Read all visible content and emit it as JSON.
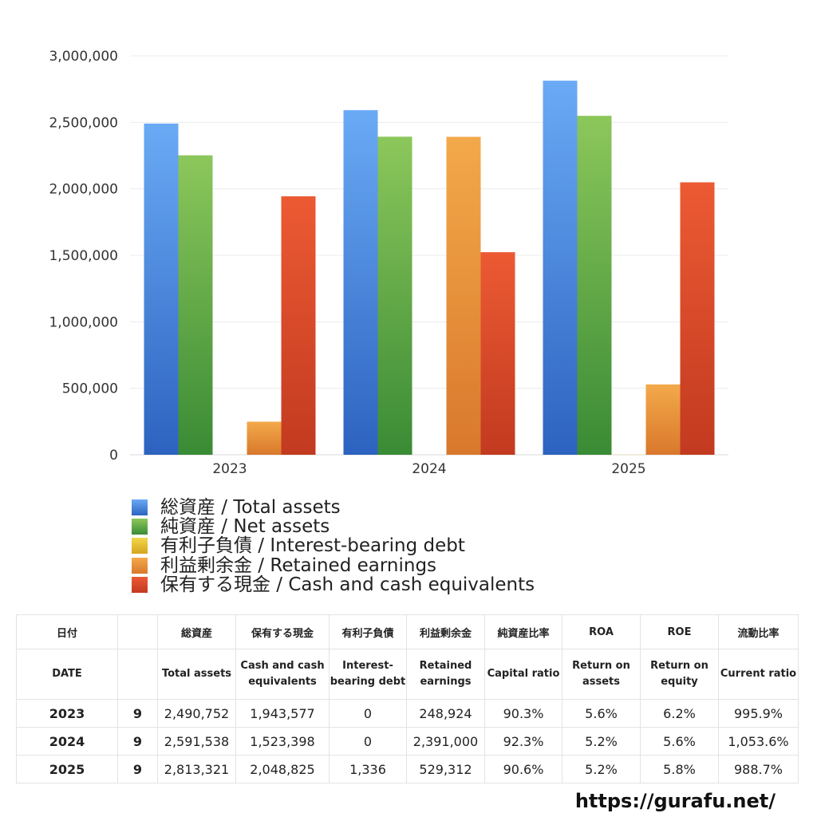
{
  "chart_data": {
    "type": "bar",
    "categories": [
      "2023",
      "2024",
      "2025"
    ],
    "ylim": [
      0,
      3000000
    ],
    "yticks": [
      "0",
      "500,000",
      "1,000,000",
      "1,500,000",
      "2,000,000",
      "2,500,000",
      "3,000,000"
    ],
    "series": [
      {
        "name": "総資産 / Total assets",
        "color_top": "#6aaaf5",
        "color_bottom": "#2d63c0",
        "values": [
          2490752,
          2591538,
          2813321
        ]
      },
      {
        "name": "純資産 / Net assets",
        "color_top": "#8cc75b",
        "color_bottom": "#3a8b35",
        "values": [
          2252000,
          2392000,
          2549000
        ]
      },
      {
        "name": "有利子負債 / Interest-bearing debt",
        "color_top": "#f3d64a",
        "color_bottom": "#d6a51c",
        "values": [
          0,
          0,
          1336
        ]
      },
      {
        "name": "利益剰余金 / Retained earnings",
        "color_top": "#f3a94a",
        "color_bottom": "#d9782c",
        "values": [
          248924,
          2391000,
          529312
        ]
      },
      {
        "name": "保有する現金 /  Cash and cash equivalents",
        "color_top": "#ec5a33",
        "color_bottom": "#c23a20",
        "values": [
          1943577,
          1523398,
          2048825
        ]
      }
    ]
  },
  "table": {
    "header_jp": [
      "日付",
      "",
      "総資産",
      "保有する現金",
      "有利子負債",
      "利益剰余金",
      "純資産比率",
      "ROA",
      "ROE",
      "流動比率"
    ],
    "header_en": [
      "DATE",
      "",
      "Total assets",
      "Cash and cash equivalents",
      "Interest-bearing debt",
      "Retained earnings",
      "Capital ratio",
      "Return on assets",
      "Return on equity",
      "Current ratio"
    ],
    "rows": [
      [
        "2023",
        "9",
        "2,490,752",
        "1,943,577",
        "0",
        "248,924",
        "90.3%",
        "5.6%",
        "6.2%",
        "995.9%"
      ],
      [
        "2024",
        "9",
        "2,591,538",
        "1,523,398",
        "0",
        "2,391,000",
        "92.3%",
        "5.2%",
        "5.6%",
        "1,053.6%"
      ],
      [
        "2025",
        "9",
        "2,813,321",
        "2,048,825",
        "1,336",
        "529,312",
        "90.6%",
        "5.2%",
        "5.8%",
        "988.7%"
      ]
    ]
  },
  "site": "https://gurafu.net/"
}
